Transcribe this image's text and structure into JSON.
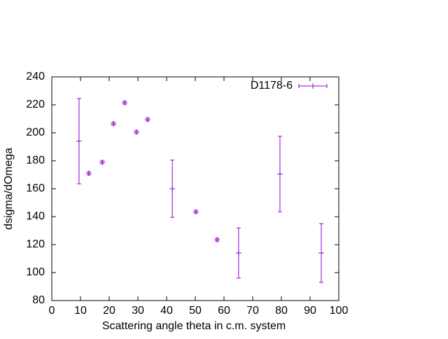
{
  "chart_data": {
    "type": "scatter",
    "xlabel": "Scattering angle theta in c.m. system",
    "ylabel": "dsigma/dOmega",
    "xlim": [
      0,
      100
    ],
    "xticks": [
      0,
      10,
      20,
      30,
      40,
      50,
      60,
      70,
      80,
      90,
      100
    ],
    "ylim": [
      80,
      240
    ],
    "yticks": [
      80,
      100,
      120,
      140,
      160,
      180,
      200,
      220,
      240
    ],
    "legend": "top-right",
    "series": [
      {
        "name": "D1178-6",
        "color": "#9400d3",
        "x": [
          9.5,
          12.9,
          17.6,
          21.5,
          25.4,
          29.5,
          33.4,
          42,
          50.2,
          57.6,
          65.1,
          79.5,
          93.9
        ],
        "values": [
          194,
          171,
          179,
          206.5,
          221.5,
          200.5,
          209.5,
          160,
          143.5,
          123.5,
          114,
          170.5,
          114
        ],
        "errors": [
          30.5,
          1,
          1,
          1,
          1,
          1,
          1,
          20.5,
          1,
          1,
          18,
          27,
          21
        ]
      }
    ]
  }
}
